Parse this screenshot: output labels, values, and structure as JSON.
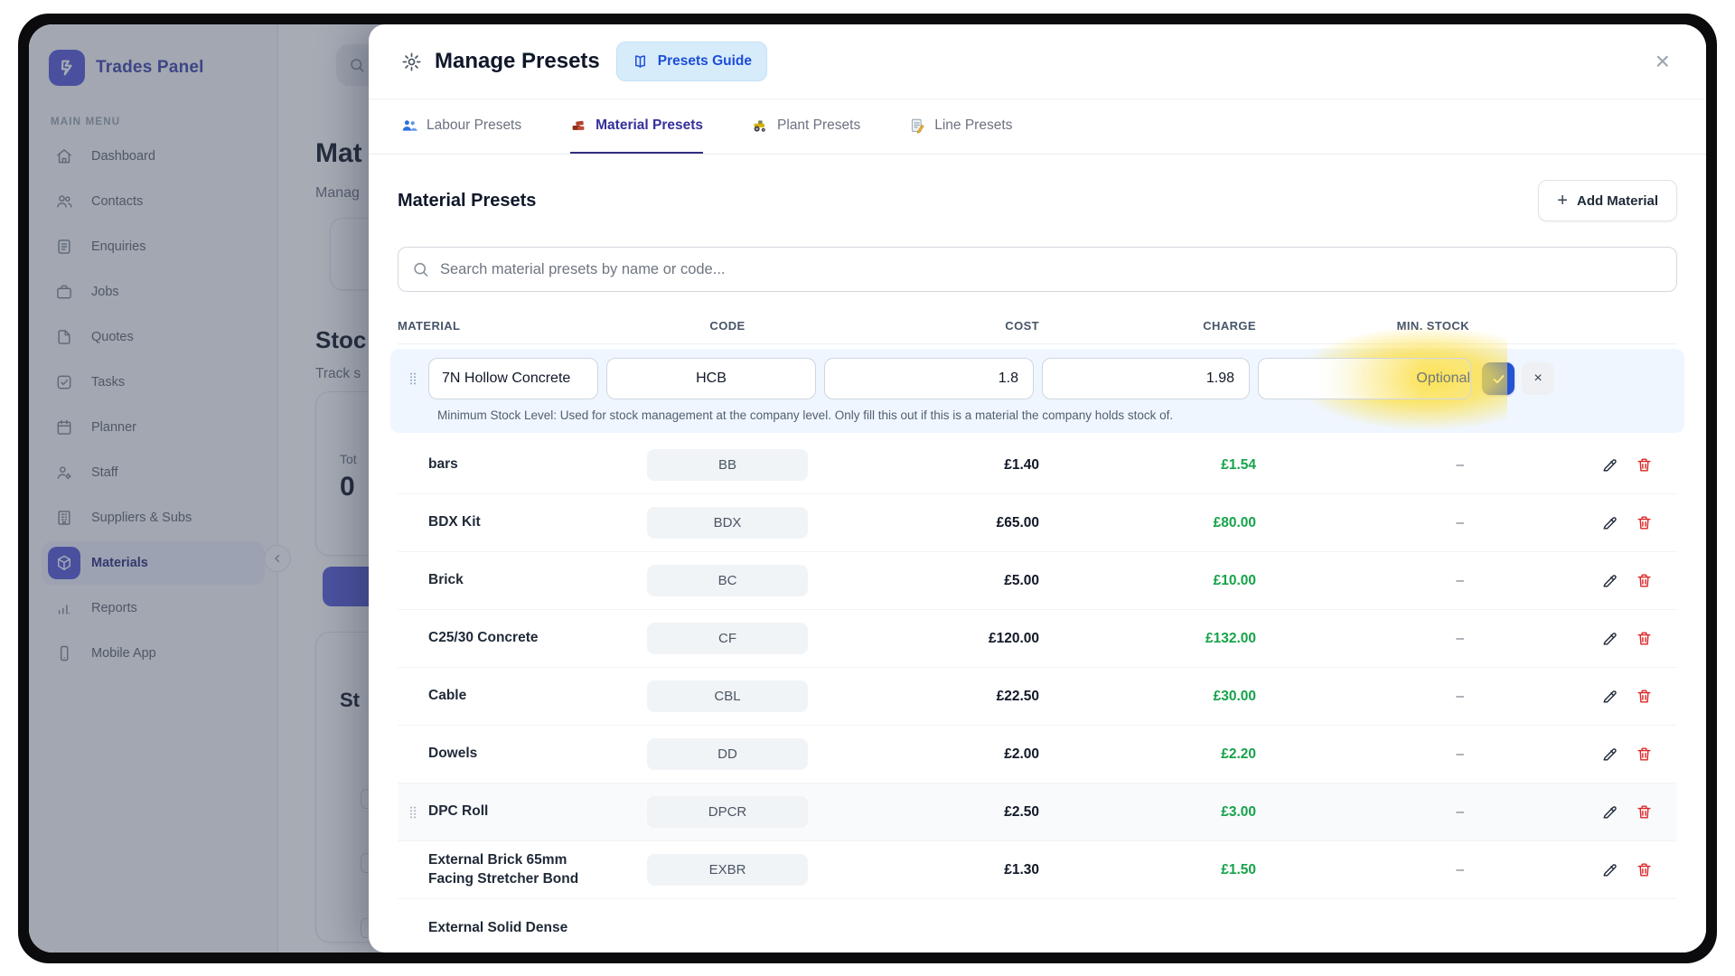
{
  "colors": {
    "accent": "#5558d6",
    "tabActive": "#312e81",
    "guideBg": "#d7ecfb",
    "guideText": "#1d4ed8",
    "highlight": "#fde047",
    "confirm": "#2553d6",
    "chargeGreen": "#16a34a",
    "deleteRed": "#dc2626"
  },
  "sidebar": {
    "logo_text": "Trades Panel",
    "section_label": "MAIN MENU",
    "items": [
      {
        "label": "Dashboard",
        "icon": "home-icon",
        "active": false
      },
      {
        "label": "Contacts",
        "icon": "contacts-icon",
        "active": false
      },
      {
        "label": "Enquiries",
        "icon": "enquiries-icon",
        "active": false
      },
      {
        "label": "Jobs",
        "icon": "jobs-icon",
        "active": false
      },
      {
        "label": "Quotes",
        "icon": "quotes-icon",
        "active": false
      },
      {
        "label": "Tasks",
        "icon": "tasks-icon",
        "active": false
      },
      {
        "label": "Planner",
        "icon": "planner-icon",
        "active": false
      },
      {
        "label": "Staff",
        "icon": "staff-icon",
        "active": false
      },
      {
        "label": "Suppliers & Subs",
        "icon": "suppliers-icon",
        "active": false
      },
      {
        "label": "Materials",
        "icon": "materials-icon",
        "active": true
      },
      {
        "label": "Reports",
        "icon": "reports-icon",
        "active": false
      },
      {
        "label": "Mobile App",
        "icon": "mobile-icon",
        "active": false
      }
    ]
  },
  "background_page": {
    "title_fragment": "Mat",
    "subtitle_fragment": "Manag",
    "section_title_fragment": "Stoc",
    "section_subtitle_fragment": "Track s",
    "stat_label_fragment": "Tot",
    "stat_value": "0",
    "lower_heading_fragment": "St"
  },
  "modal": {
    "title": "Manage Presets",
    "guide_button_label": "Presets Guide",
    "close_glyph": "×",
    "tabs": [
      {
        "label": "Labour Presets",
        "icon": "labour-icon",
        "active": false
      },
      {
        "label": "Material Presets",
        "icon": "material-icon",
        "active": true
      },
      {
        "label": "Plant Presets",
        "icon": "plant-icon",
        "active": false
      },
      {
        "label": "Line Presets",
        "icon": "line-icon",
        "active": false
      }
    ],
    "section_title": "Material Presets",
    "add_button_label": "Add Material",
    "add_button_plus": "+",
    "search_placeholder": "Search material presets by name or code...",
    "table": {
      "headers": {
        "material": "MATERIAL",
        "code": "CODE",
        "cost": "COST",
        "charge": "CHARGE",
        "min_stock": "MIN. STOCK"
      },
      "edit_row": {
        "material_value": "7N Hollow Concrete",
        "code_value": "HCB",
        "cost_value": "1.8",
        "charge_value": "1.98",
        "min_stock_placeholder": "Optional",
        "cancel_glyph": "×",
        "help_text": "Minimum Stock Level: Used for stock management at the company level. Only fill this out if this is a material the company holds stock of."
      },
      "rows": [
        {
          "name": "bars",
          "code": "BB",
          "cost": "£1.40",
          "charge": "£1.54",
          "min_stock": "–"
        },
        {
          "name": "BDX Kit",
          "code": "BDX",
          "cost": "£65.00",
          "charge": "£80.00",
          "min_stock": "–"
        },
        {
          "name": "Brick",
          "code": "BC",
          "cost": "£5.00",
          "charge": "£10.00",
          "min_stock": "–"
        },
        {
          "name": "C25/30 Concrete",
          "code": "CF",
          "cost": "£120.00",
          "charge": "£132.00",
          "min_stock": "–"
        },
        {
          "name": "Cable",
          "code": "CBL",
          "cost": "£22.50",
          "charge": "£30.00",
          "min_stock": "–"
        },
        {
          "name": "Dowels",
          "code": "DD",
          "cost": "£2.00",
          "charge": "£2.20",
          "min_stock": "–"
        },
        {
          "name": "DPC Roll",
          "code": "DPCR",
          "cost": "£2.50",
          "charge": "£3.00",
          "min_stock": "–",
          "hover": true
        },
        {
          "name": "External Brick 65mm Facing Stretcher Bond",
          "code": "EXBR",
          "cost": "£1.30",
          "charge": "£1.50",
          "min_stock": "–"
        },
        {
          "name": "External Solid Dense",
          "partial": true
        }
      ]
    }
  }
}
